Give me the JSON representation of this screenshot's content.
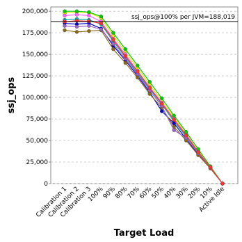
{
  "chart_data": {
    "type": "line",
    "y_label": "ssj_ops",
    "x_label": "Target Load",
    "annotation": "ssj_ops@100% per JVM=188,019",
    "reference_line": 188019,
    "categories": [
      "Calibration 1",
      "Calibration 2",
      "Calibration 3",
      "100%",
      "90%",
      "80%",
      "70%",
      "60%",
      "50%",
      "40%",
      "30%",
      "20%",
      "10%",
      "Active Idle"
    ],
    "ylim": [
      0,
      205000
    ],
    "yticks": [
      0,
      {
        "value": 25000,
        "label": "25,000"
      },
      {
        "value": 50000,
        "label": "50,000"
      },
      {
        "value": 75000,
        "label": "75,000"
      },
      {
        "value": 100000,
        "label": "100,000"
      },
      {
        "value": 125000,
        "label": "125,000"
      },
      {
        "value": 150000,
        "label": "150,000"
      },
      {
        "value": 175000,
        "label": "175,000"
      },
      {
        "value": 200000,
        "label": "200,000"
      }
    ],
    "grid": true,
    "series": [
      {
        "color": "#e8e800",
        "values": [
          198000,
          199000,
          198500,
          192000,
          172000,
          153000,
          134000,
          115000,
          96000,
          77000,
          58000,
          38000,
          20000,
          0
        ]
      },
      {
        "color": "#ff66ff",
        "values": [
          195000,
          196000,
          195000,
          188000,
          168000,
          150000,
          131000,
          112000,
          94000,
          75000,
          57000,
          37000,
          19000,
          0
        ]
      },
      {
        "color": "#00aaaa",
        "values": [
          190000,
          191000,
          190000,
          185000,
          165000,
          147000,
          128000,
          110000,
          92000,
          72000,
          55000,
          36000,
          18500,
          0
        ]
      },
      {
        "color": "#0000cc",
        "values": [
          186000,
          185000,
          186000,
          180000,
          160000,
          143000,
          125000,
          106000,
          84000,
          70000,
          52000,
          34000,
          18000,
          0
        ]
      },
      {
        "color": "#8b6914",
        "values": [
          178000,
          176000,
          177000,
          178000,
          156000,
          140000,
          123000,
          104000,
          88000,
          66000,
          50000,
          33000,
          17500,
          0
        ]
      },
      {
        "color": "#00cc00",
        "values": [
          200000,
          200000,
          199000,
          194000,
          175000,
          156000,
          137000,
          118000,
          99000,
          79000,
          60000,
          40000,
          20000,
          0
        ]
      },
      {
        "color": "#9966cc",
        "values": [
          183000,
          182000,
          183000,
          179000,
          162000,
          145000,
          127000,
          108000,
          90000,
          62000,
          53000,
          35000,
          18500,
          0
        ]
      },
      {
        "color": "#ff3333",
        "values": [
          188000,
          189000,
          188500,
          186000,
          167000,
          148000,
          130000,
          111000,
          93000,
          74000,
          56000,
          36500,
          19000,
          0
        ]
      }
    ]
  }
}
